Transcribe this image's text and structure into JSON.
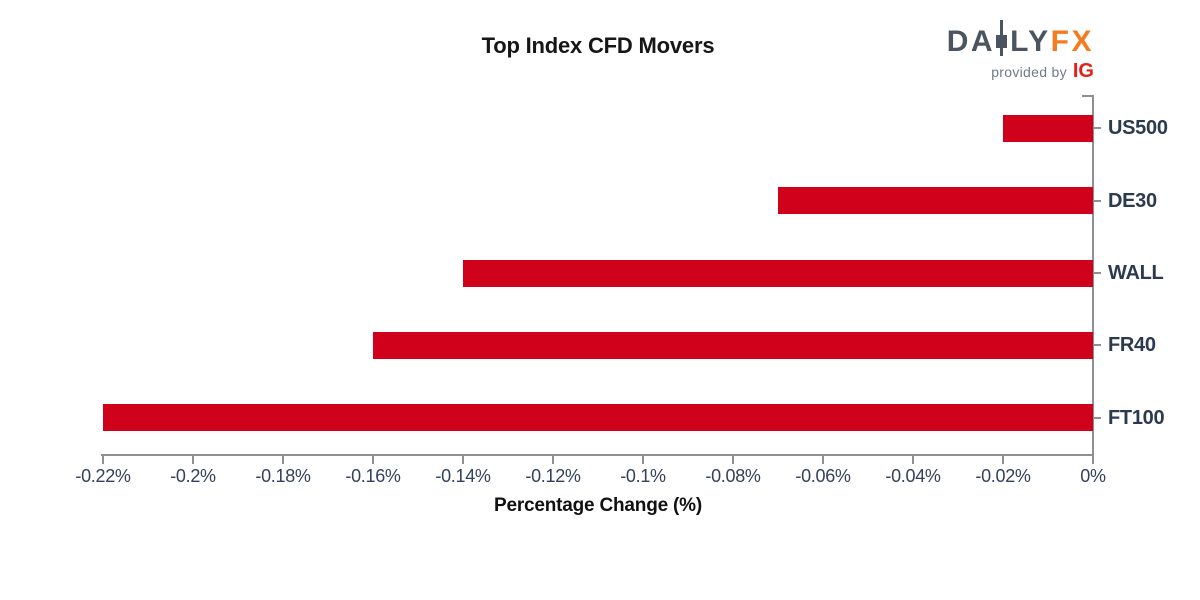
{
  "header": {
    "logo": {
      "part_da": "DA",
      "part_ly": "LY",
      "part_fx": "FX",
      "provided_by": "provided by",
      "ig": "IG"
    }
  },
  "chart_data": {
    "type": "bar",
    "orientation": "horizontal",
    "title": "Top Index CFD Movers",
    "categories": [
      "US500",
      "DE30",
      "WALL",
      "FR40",
      "FT100"
    ],
    "values": [
      -0.02,
      -0.07,
      -0.14,
      -0.16,
      -0.22
    ],
    "value_unit": "%",
    "xlabel": "Percentage Change (%)",
    "ylabel": "",
    "xlim": [
      -0.22,
      0
    ],
    "xticks": [
      -0.22,
      -0.2,
      -0.18,
      -0.16,
      -0.14,
      -0.12,
      -0.1,
      -0.08,
      -0.06,
      -0.04,
      -0.02,
      0
    ],
    "xtick_labels": [
      "-0.22%",
      "-0.2%",
      "-0.18%",
      "-0.16%",
      "-0.14%",
      "-0.12%",
      "-0.1%",
      "-0.08%",
      "-0.06%",
      "-0.04%",
      "-0.02%",
      "0%"
    ],
    "grid": false,
    "legend": "none",
    "category_labels_position": "right",
    "bar_color": "#d0021b"
  },
  "colors": {
    "bar": "#d0021b",
    "axis_line": "#909090",
    "tick_label": "#33425a",
    "category_label": "#2b3a4f",
    "title": "#161616",
    "logo_slate": "#4a5560",
    "logo_orange": "#f47b20",
    "provided_by_gray": "#6e7a87",
    "ig_red": "#e32119",
    "background": "#ffffff"
  }
}
